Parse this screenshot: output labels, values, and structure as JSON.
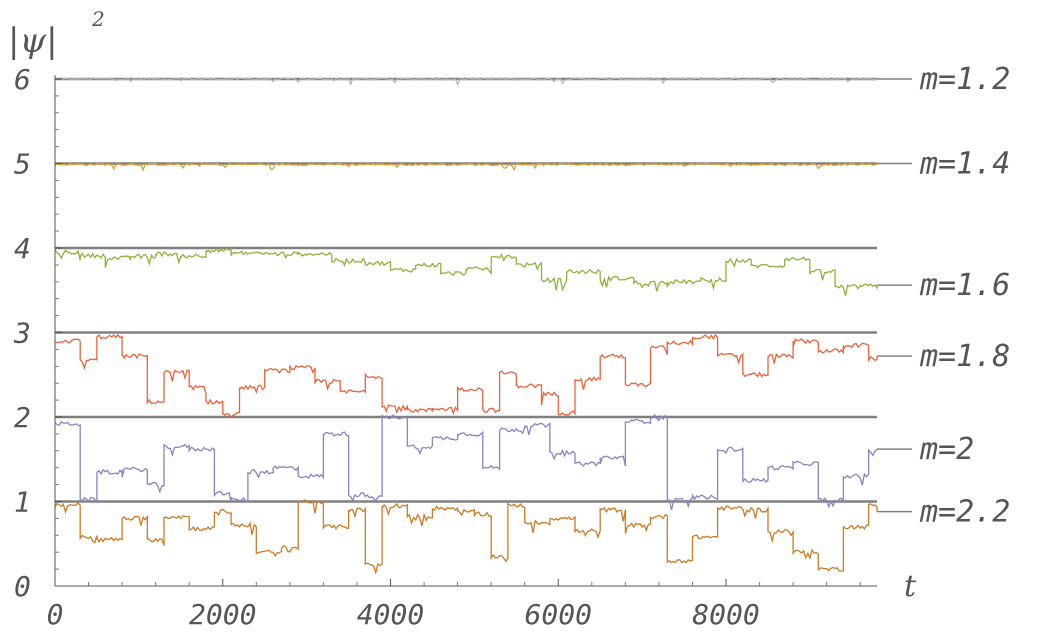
{
  "chart_data": {
    "type": "line",
    "ylabel_main": "|ψ|",
    "ylabel_exp": "2",
    "xlabel": "t",
    "xlim": [
      0,
      9800
    ],
    "ylim": [
      0,
      6
    ],
    "xticks": [
      "0",
      "2000",
      "4000",
      "6000",
      "8000"
    ],
    "xtick_values": [
      0,
      2000,
      4000,
      6000,
      8000
    ],
    "yticks": [
      "0",
      "1",
      "2",
      "3",
      "4",
      "5",
      "6"
    ],
    "ytick_values": [
      0,
      1,
      2,
      3,
      4,
      5,
      6
    ],
    "reference_lines": [
      1,
      2,
      3,
      4,
      5,
      6
    ],
    "series": [
      {
        "name": "m=1.2",
        "color": "#b6b6b6",
        "label_y": 6.0,
        "x": [
          0,
          9800
        ],
        "y": [
          6.0,
          6.0
        ]
      },
      {
        "name": "m=1.4",
        "color": "#e0a030",
        "label_y": 5.0,
        "x": [
          0,
          9800
        ],
        "y": [
          4.99,
          4.99
        ]
      },
      {
        "name": "m=1.6",
        "color": "#8db33b",
        "label_y": 3.56,
        "x": [
          0,
          300,
          600,
          900,
          1200,
          1500,
          1800,
          2100,
          2500,
          2900,
          3300,
          3700,
          4000,
          4300,
          4600,
          4900,
          5200,
          5500,
          5800,
          6100,
          6500,
          6900,
          7300,
          7700,
          8000,
          8300,
          8700,
          9000,
          9300,
          9600,
          9800
        ],
        "y": [
          3.95,
          3.91,
          3.88,
          3.9,
          3.93,
          3.91,
          3.97,
          3.94,
          3.93,
          3.93,
          3.85,
          3.82,
          3.74,
          3.8,
          3.7,
          3.75,
          3.9,
          3.8,
          3.62,
          3.72,
          3.64,
          3.59,
          3.6,
          3.62,
          3.85,
          3.79,
          3.87,
          3.72,
          3.54,
          3.55,
          3.56
        ]
      },
      {
        "name": "m=1.8",
        "color": "#e8633a",
        "label_y": 2.72,
        "x": [
          0,
          300,
          500,
          800,
          1100,
          1300,
          1600,
          1800,
          2000,
          2200,
          2500,
          2800,
          3100,
          3400,
          3700,
          3900,
          4200,
          4500,
          4800,
          5100,
          5300,
          5500,
          5800,
          6000,
          6200,
          6500,
          6800,
          7100,
          7300,
          7600,
          7900,
          8200,
          8500,
          8800,
          9100,
          9400,
          9700,
          9800
        ],
        "y": [
          2.9,
          2.67,
          2.95,
          2.72,
          2.18,
          2.53,
          2.35,
          2.18,
          2.03,
          2.35,
          2.55,
          2.58,
          2.42,
          2.3,
          2.48,
          2.13,
          2.08,
          2.1,
          2.33,
          2.08,
          2.52,
          2.37,
          2.27,
          2.05,
          2.45,
          2.72,
          2.38,
          2.82,
          2.88,
          2.95,
          2.73,
          2.5,
          2.72,
          2.9,
          2.78,
          2.85,
          2.69,
          2.72
        ]
      },
      {
        "name": "m=2",
        "color": "#8f80c3",
        "label_y": 1.62,
        "x": [
          0,
          300,
          500,
          800,
          1100,
          1300,
          1600,
          1900,
          2100,
          2300,
          2600,
          2900,
          3200,
          3500,
          3700,
          3900,
          4200,
          4500,
          4800,
          5100,
          5300,
          5600,
          5900,
          6200,
          6500,
          6800,
          7100,
          7300,
          7600,
          7900,
          8200,
          8500,
          8800,
          9100,
          9400,
          9700,
          9800
        ],
        "y": [
          1.92,
          1.02,
          1.35,
          1.38,
          1.2,
          1.65,
          1.62,
          1.1,
          1.02,
          1.35,
          1.4,
          1.3,
          1.8,
          1.08,
          1.05,
          2.0,
          1.65,
          1.75,
          1.8,
          1.4,
          1.85,
          1.9,
          1.58,
          1.45,
          1.52,
          1.95,
          2.0,
          1.02,
          1.05,
          1.62,
          1.25,
          1.4,
          1.45,
          1.02,
          1.3,
          1.6,
          1.62
        ]
      },
      {
        "name": "m=2.2",
        "color": "#cf7a25",
        "label_y": 0.88,
        "x": [
          0,
          300,
          500,
          800,
          1100,
          1300,
          1600,
          1900,
          2100,
          2400,
          2700,
          2900,
          3200,
          3500,
          3700,
          3900,
          4200,
          4500,
          4800,
          5000,
          5200,
          5400,
          5600,
          5900,
          6200,
          6500,
          6800,
          7100,
          7300,
          7600,
          7900,
          8200,
          8500,
          8800,
          9100,
          9400,
          9700,
          9800
        ],
        "y": [
          0.96,
          0.58,
          0.55,
          0.8,
          0.55,
          0.82,
          0.68,
          0.88,
          0.72,
          0.4,
          0.45,
          1.0,
          0.7,
          0.9,
          0.25,
          0.95,
          0.82,
          0.92,
          0.88,
          0.85,
          0.35,
          0.95,
          0.75,
          0.8,
          0.65,
          0.9,
          0.72,
          0.82,
          0.3,
          0.58,
          0.92,
          0.9,
          0.65,
          0.4,
          0.2,
          0.7,
          0.96,
          0.88
        ]
      }
    ]
  }
}
